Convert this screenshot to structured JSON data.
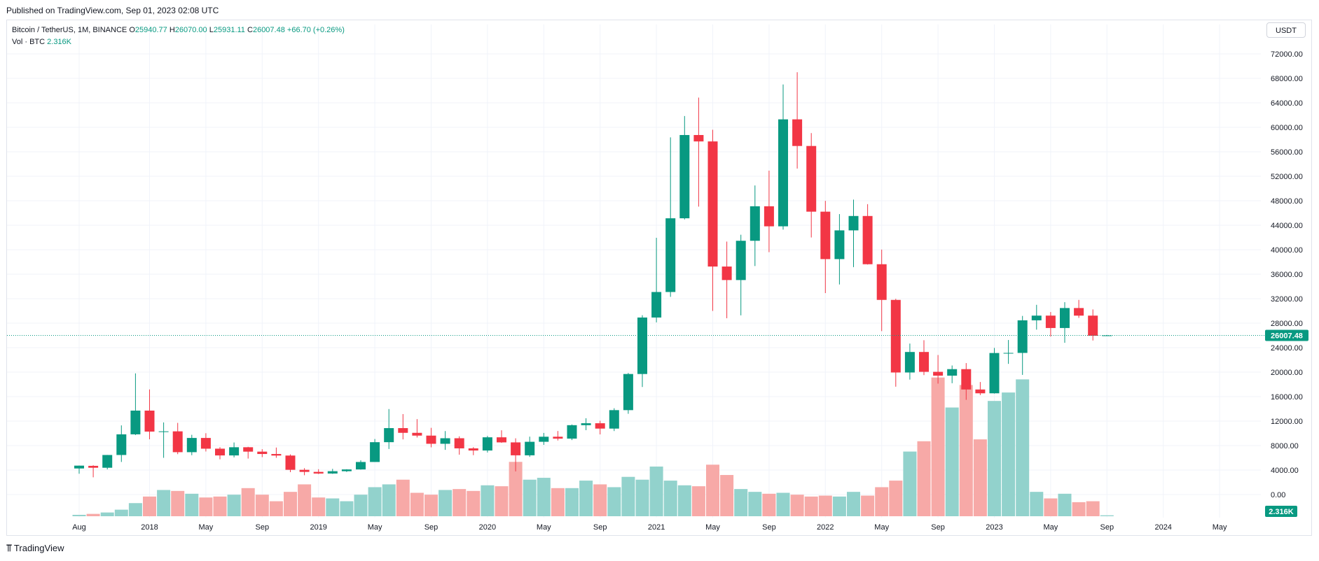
{
  "published": "Published on TradingView.com, Sep 01, 2023 02:08 UTC",
  "legend": {
    "symbol": "Bitcoin / TetherUS, 1M, BINANCE",
    "open_label": "O",
    "open": "25940.77",
    "high_label": "H",
    "high": "26070.00",
    "low_label": "L",
    "low": "25931.11",
    "close_label": "C",
    "close": "26007.48",
    "change": "+66.70 (+0.26%)",
    "vol_label": "Vol · BTC",
    "vol_value": "2.316K"
  },
  "currency_button": "USDT",
  "last_price_label": "26007.48",
  "last_volume_label": "2.316K",
  "footer": {
    "brand": "TradingView"
  },
  "colors": {
    "up": "#089981",
    "down": "#f23645",
    "up_volume": "#92d2cc",
    "down_volume": "#f7a9a7",
    "grid": "#f0f3fa"
  },
  "chart_data": {
    "type": "candlestick",
    "y_ticks": [
      "72000.00",
      "68000.00",
      "64000.00",
      "60000.00",
      "56000.00",
      "52000.00",
      "48000.00",
      "44000.00",
      "40000.00",
      "36000.00",
      "32000.00",
      "28000.00",
      "24000.00",
      "20000.00",
      "16000.00",
      "12000.00",
      "8000.00",
      "4000.00",
      "0.00"
    ],
    "y_tick_values": [
      72000,
      68000,
      64000,
      60000,
      56000,
      52000,
      48000,
      44000,
      40000,
      36000,
      32000,
      28000,
      24000,
      20000,
      16000,
      12000,
      8000,
      4000,
      0
    ],
    "x_labels": [
      {
        "text": "Aug",
        "month": 0
      },
      {
        "text": "2018",
        "month": 5
      },
      {
        "text": "May",
        "month": 9
      },
      {
        "text": "Sep",
        "month": 13
      },
      {
        "text": "2019",
        "month": 17
      },
      {
        "text": "May",
        "month": 21
      },
      {
        "text": "Sep",
        "month": 25
      },
      {
        "text": "2020",
        "month": 29
      },
      {
        "text": "May",
        "month": 33
      },
      {
        "text": "Sep",
        "month": 37
      },
      {
        "text": "2021",
        "month": 41
      },
      {
        "text": "May",
        "month": 45
      },
      {
        "text": "Sep",
        "month": 49
      },
      {
        "text": "2022",
        "month": 53
      },
      {
        "text": "May",
        "month": 57
      },
      {
        "text": "Sep",
        "month": 61
      },
      {
        "text": "2023",
        "month": 65
      },
      {
        "text": "May",
        "month": 69
      },
      {
        "text": "Sep",
        "month": 73
      },
      {
        "text": "2024",
        "month": 77
      },
      {
        "text": "May",
        "month": 81
      }
    ],
    "candles": [
      {
        "m": "2017-08",
        "o": 4261,
        "h": 4745,
        "l": 3400,
        "c": 4724,
        "v": 0.15
      },
      {
        "m": "2017-09",
        "o": 4690,
        "h": 4789,
        "l": 2817,
        "c": 4378,
        "v": 0.25
      },
      {
        "m": "2017-10",
        "o": 4378,
        "h": 6470,
        "l": 4110,
        "c": 6463,
        "v": 0.4
      },
      {
        "m": "2017-11",
        "o": 6463,
        "h": 11300,
        "l": 5325,
        "c": 9838,
        "v": 0.7
      },
      {
        "m": "2017-12",
        "o": 9838,
        "h": 19798,
        "l": 9722,
        "c": 13716,
        "v": 1.4
      },
      {
        "m": "2018-01",
        "o": 13716,
        "h": 17176,
        "l": 9035,
        "c": 10285,
        "v": 2.1
      },
      {
        "m": "2018-02",
        "o": 10285,
        "h": 11786,
        "l": 6000,
        "c": 10326,
        "v": 2.8
      },
      {
        "m": "2018-03",
        "o": 10326,
        "h": 11710,
        "l": 6600,
        "c": 6923,
        "v": 2.7
      },
      {
        "m": "2018-04",
        "o": 6923,
        "h": 9759,
        "l": 6430,
        "c": 9246,
        "v": 2.4
      },
      {
        "m": "2018-05",
        "o": 9246,
        "h": 10020,
        "l": 7034,
        "c": 7494,
        "v": 2.0
      },
      {
        "m": "2018-06",
        "o": 7494,
        "h": 7750,
        "l": 5755,
        "c": 6391,
        "v": 2.1
      },
      {
        "m": "2018-07",
        "o": 6391,
        "h": 8507,
        "l": 6070,
        "c": 7730,
        "v": 2.3
      },
      {
        "m": "2018-08",
        "o": 7730,
        "h": 7800,
        "l": 5880,
        "c": 7011,
        "v": 3.0
      },
      {
        "m": "2018-09",
        "o": 7011,
        "h": 7410,
        "l": 6111,
        "c": 6626,
        "v": 2.3
      },
      {
        "m": "2018-10",
        "o": 6626,
        "h": 7680,
        "l": 6000,
        "c": 6371,
        "v": 1.6
      },
      {
        "m": "2018-11",
        "o": 6371,
        "h": 6555,
        "l": 3652,
        "c": 4041,
        "v": 2.6
      },
      {
        "m": "2018-12",
        "o": 4041,
        "h": 4312,
        "l": 3156,
        "c": 3702,
        "v": 3.4
      },
      {
        "m": "2019-01",
        "o": 3702,
        "h": 4140,
        "l": 3349,
        "c": 3434,
        "v": 2.0
      },
      {
        "m": "2019-02",
        "o": 3434,
        "h": 4198,
        "l": 3373,
        "c": 3813,
        "v": 1.9
      },
      {
        "m": "2019-03",
        "o": 3813,
        "h": 4140,
        "l": 3689,
        "c": 4103,
        "v": 1.6
      },
      {
        "m": "2019-04",
        "o": 4103,
        "h": 5600,
        "l": 4067,
        "c": 5320,
        "v": 2.3
      },
      {
        "m": "2019-05",
        "o": 5320,
        "h": 9074,
        "l": 5320,
        "c": 8555,
        "v": 3.1
      },
      {
        "m": "2019-06",
        "o": 8555,
        "h": 13970,
        "l": 7444,
        "c": 10854,
        "v": 3.4
      },
      {
        "m": "2019-07",
        "o": 10854,
        "h": 13147,
        "l": 9010,
        "c": 10085,
        "v": 3.9
      },
      {
        "m": "2019-08",
        "o": 10085,
        "h": 12325,
        "l": 9320,
        "c": 9630,
        "v": 2.5
      },
      {
        "m": "2019-09",
        "o": 9630,
        "h": 10904,
        "l": 7710,
        "c": 8293,
        "v": 2.3
      },
      {
        "m": "2019-10",
        "o": 8293,
        "h": 10370,
        "l": 7300,
        "c": 9199,
        "v": 2.8
      },
      {
        "m": "2019-11",
        "o": 9199,
        "h": 9513,
        "l": 6515,
        "c": 7546,
        "v": 2.9
      },
      {
        "m": "2019-12",
        "o": 7546,
        "h": 7750,
        "l": 6435,
        "c": 7196,
        "v": 2.7
      },
      {
        "m": "2020-01",
        "o": 7196,
        "h": 9578,
        "l": 6871,
        "c": 9352,
        "v": 3.3
      },
      {
        "m": "2020-02",
        "o": 9352,
        "h": 10500,
        "l": 8445,
        "c": 8523,
        "v": 3.2
      },
      {
        "m": "2020-03",
        "o": 8523,
        "h": 9188,
        "l": 3782,
        "c": 6410,
        "v": 5.8
      },
      {
        "m": "2020-04",
        "o": 6410,
        "h": 9460,
        "l": 6150,
        "c": 8620,
        "v": 3.9
      },
      {
        "m": "2020-05",
        "o": 8620,
        "h": 10067,
        "l": 8117,
        "c": 9448,
        "v": 4.1
      },
      {
        "m": "2020-06",
        "o": 9448,
        "h": 10380,
        "l": 8833,
        "c": 9138,
        "v": 3.0
      },
      {
        "m": "2020-07",
        "o": 9138,
        "h": 11444,
        "l": 8893,
        "c": 11335,
        "v": 3.0
      },
      {
        "m": "2020-08",
        "o": 11335,
        "h": 12468,
        "l": 10518,
        "c": 11650,
        "v": 3.8
      },
      {
        "m": "2020-09",
        "o": 11650,
        "h": 12050,
        "l": 9825,
        "c": 10776,
        "v": 3.4
      },
      {
        "m": "2020-10",
        "o": 10776,
        "h": 14100,
        "l": 10374,
        "c": 13791,
        "v": 3.1
      },
      {
        "m": "2020-11",
        "o": 13791,
        "h": 19863,
        "l": 13195,
        "c": 19695,
        "v": 4.2
      },
      {
        "m": "2020-12",
        "o": 19695,
        "h": 29300,
        "l": 17572,
        "c": 28923,
        "v": 3.9
      },
      {
        "m": "2021-01",
        "o": 28923,
        "h": 41950,
        "l": 28130,
        "c": 33092,
        "v": 5.3
      },
      {
        "m": "2021-02",
        "o": 33092,
        "h": 58352,
        "l": 32296,
        "c": 45135,
        "v": 3.8
      },
      {
        "m": "2021-03",
        "o": 45135,
        "h": 61845,
        "l": 44950,
        "c": 58740,
        "v": 3.3
      },
      {
        "m": "2021-04",
        "o": 58740,
        "h": 64854,
        "l": 47044,
        "c": 57694,
        "v": 3.2
      },
      {
        "m": "2021-05",
        "o": 57694,
        "h": 59600,
        "l": 30000,
        "c": 37253,
        "v": 5.5
      },
      {
        "m": "2021-06",
        "o": 37253,
        "h": 41330,
        "l": 28805,
        "c": 35045,
        "v": 4.4
      },
      {
        "m": "2021-07",
        "o": 35045,
        "h": 42448,
        "l": 29278,
        "c": 41461,
        "v": 2.9
      },
      {
        "m": "2021-08",
        "o": 41461,
        "h": 50500,
        "l": 37332,
        "c": 47100,
        "v": 2.6
      },
      {
        "m": "2021-09",
        "o": 47100,
        "h": 52920,
        "l": 39600,
        "c": 43824,
        "v": 2.4
      },
      {
        "m": "2021-10",
        "o": 43824,
        "h": 67000,
        "l": 43283,
        "c": 61300,
        "v": 2.5
      },
      {
        "m": "2021-11",
        "o": 61300,
        "h": 69000,
        "l": 53256,
        "c": 56950,
        "v": 2.3
      },
      {
        "m": "2021-12",
        "o": 56950,
        "h": 59053,
        "l": 42000,
        "c": 46217,
        "v": 2.1
      },
      {
        "m": "2022-01",
        "o": 46217,
        "h": 47990,
        "l": 32917,
        "c": 38466,
        "v": 2.2
      },
      {
        "m": "2022-02",
        "o": 38466,
        "h": 45821,
        "l": 34322,
        "c": 43160,
        "v": 2.1
      },
      {
        "m": "2022-03",
        "o": 43160,
        "h": 48189,
        "l": 37155,
        "c": 45510,
        "v": 2.6
      },
      {
        "m": "2022-04",
        "o": 45510,
        "h": 47444,
        "l": 37578,
        "c": 37630,
        "v": 2.2
      },
      {
        "m": "2022-05",
        "o": 37630,
        "h": 40023,
        "l": 26700,
        "c": 31801,
        "v": 3.1
      },
      {
        "m": "2022-06",
        "o": 31801,
        "h": 31982,
        "l": 17622,
        "c": 19942,
        "v": 3.8
      },
      {
        "m": "2022-07",
        "o": 19942,
        "h": 24668,
        "l": 18781,
        "c": 23293,
        "v": 6.9
      },
      {
        "m": "2022-08",
        "o": 23293,
        "h": 25211,
        "l": 19520,
        "c": 20050,
        "v": 8.0
      },
      {
        "m": "2022-09",
        "o": 20050,
        "h": 22800,
        "l": 18125,
        "c": 19423,
        "v": 14.8
      },
      {
        "m": "2022-10",
        "o": 19423,
        "h": 21085,
        "l": 18190,
        "c": 20490,
        "v": 11.6
      },
      {
        "m": "2022-11",
        "o": 20490,
        "h": 21480,
        "l": 15476,
        "c": 17164,
        "v": 14.0
      },
      {
        "m": "2022-12",
        "o": 17164,
        "h": 18387,
        "l": 16256,
        "c": 16542,
        "v": 8.2
      },
      {
        "m": "2023-01",
        "o": 16542,
        "h": 23960,
        "l": 16499,
        "c": 23125,
        "v": 12.3
      },
      {
        "m": "2023-02",
        "o": 23125,
        "h": 25250,
        "l": 21351,
        "c": 23141,
        "v": 13.2
      },
      {
        "m": "2023-03",
        "o": 23141,
        "h": 29184,
        "l": 19549,
        "c": 28465,
        "v": 14.6
      },
      {
        "m": "2023-04",
        "o": 28465,
        "h": 30999,
        "l": 26942,
        "c": 29233,
        "v": 2.6
      },
      {
        "m": "2023-05",
        "o": 29233,
        "h": 29820,
        "l": 25811,
        "c": 27210,
        "v": 1.9
      },
      {
        "m": "2023-06",
        "o": 27210,
        "h": 31432,
        "l": 24800,
        "c": 30472,
        "v": 2.4
      },
      {
        "m": "2023-07",
        "o": 30472,
        "h": 31804,
        "l": 28861,
        "c": 29232,
        "v": 1.5
      },
      {
        "m": "2023-08",
        "o": 29232,
        "h": 30244,
        "l": 25166,
        "c": 25940,
        "v": 1.6
      },
      {
        "m": "2023-09",
        "o": 25940,
        "h": 26070,
        "l": 25931,
        "c": 26007,
        "v": 0.1
      }
    ]
  }
}
